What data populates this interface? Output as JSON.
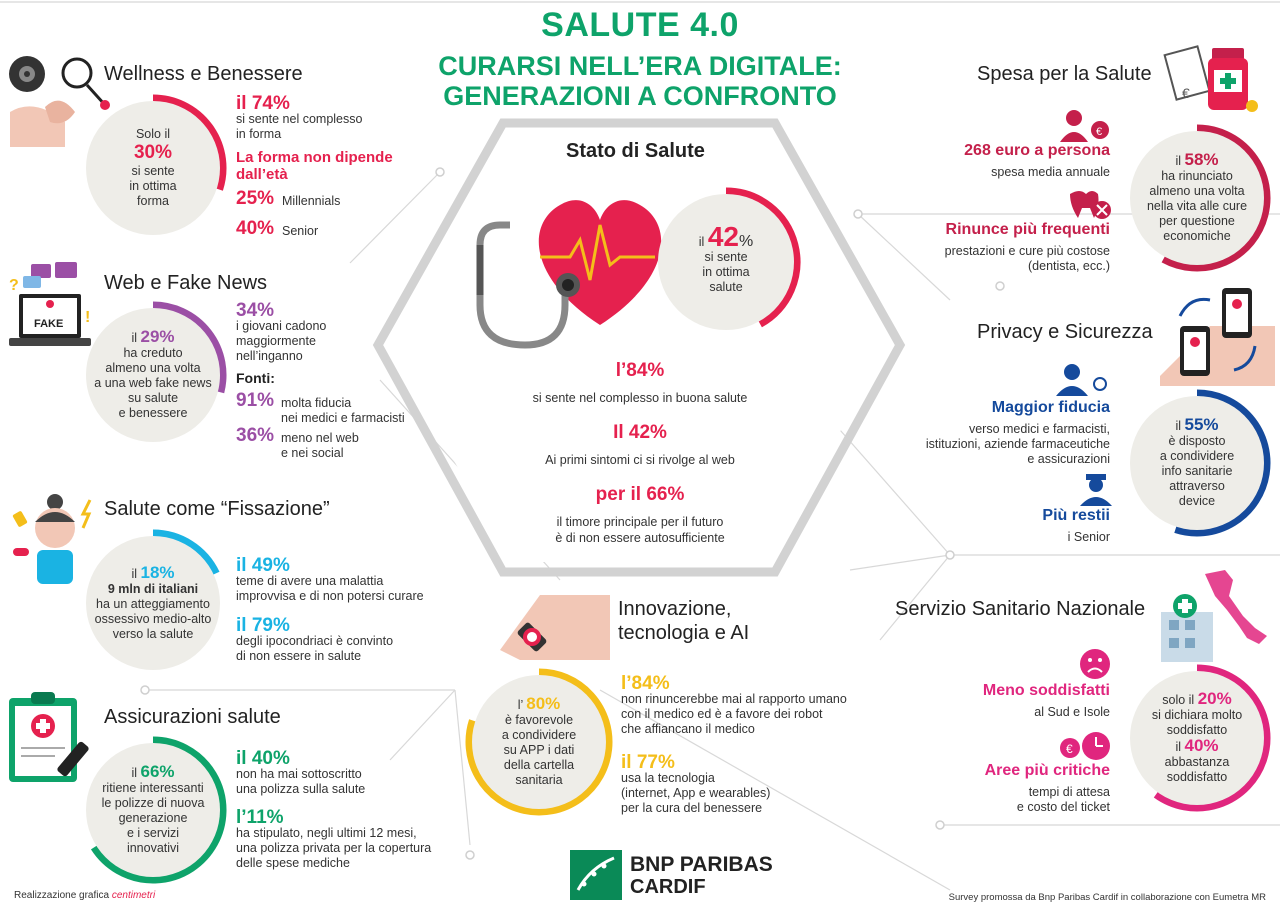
{
  "header": {
    "title": "SALUTE 4.0",
    "subtitle_line1": "CURARSI NELL’ERA DIGITALE:",
    "subtitle_line2": "GENERAZIONI A CONFRONTO"
  },
  "wellness": {
    "title": "Wellness e Benessere",
    "circle": {
      "l1": "Solo il",
      "pct": "30%",
      "l2": "si sente",
      "l3": "in ottima",
      "l4": "forma"
    },
    "s1_pct": "il 74%",
    "s1_text1": "si sente nel complesso",
    "s1_text2": "in forma",
    "s2_head1": "La forma non dipende",
    "s2_head2": "dall’età",
    "s3_pct": "25%",
    "s3_text": "Millennials",
    "s4_pct": "40%",
    "s4_text": "Senior",
    "progress": 0.3
  },
  "web": {
    "title": "Web e Fake News",
    "fake_label": "FAKE",
    "circle": {
      "pct_pre": "il",
      "pct": "29%",
      "l1": "ha creduto",
      "l2": "almeno una volta",
      "l3": "a una web fake news",
      "l4": "su salute",
      "l5": "e benessere"
    },
    "s1_pct": "34%",
    "s1_t1": "i giovani cadono",
    "s1_t2": "maggiormente",
    "s1_t3": "nell’inganno",
    "fonti": "Fonti:",
    "s2_pct": "91%",
    "s2_t1": "molta fiducia",
    "s2_t2": "nei medici e farmacisti",
    "s3_pct": "36%",
    "s3_t1": "meno nel web",
    "s3_t2": "e nei social",
    "progress": 0.29
  },
  "fissazione": {
    "title": "Salute come “Fissazione”",
    "circle": {
      "pct_pre": "il",
      "pct": "18%",
      "l1": "9 mln di italiani",
      "l2": "ha un atteggiamento",
      "l3": "ossessivo medio-alto",
      "l4": "verso la salute"
    },
    "s1_pct": "il 49%",
    "s1_t1": "teme di avere una malattia",
    "s1_t2": "improvvisa e di non potersi curare",
    "s2_pct": "il 79%",
    "s2_t1": "degli ipocondriaci è convinto",
    "s2_t2": "di non essere in salute",
    "progress": 0.18
  },
  "assicurazioni": {
    "title": "Assicurazioni salute",
    "circle": {
      "pct_pre": "il",
      "pct": "66%",
      "l1": "ritiene interessanti",
      "l2": "le polizze di nuova",
      "l3": "generazione",
      "l4": "e i servizi",
      "l5": "innovativi"
    },
    "s1_pct": "il 40%",
    "s1_t1": "non ha mai sottoscritto",
    "s1_t2": "una polizza sulla salute",
    "s2_pct": "l’11%",
    "s2_t1": "ha stipulato, negli ultimi 12 mesi,",
    "s2_t2": "una polizza privata per la copertura",
    "s2_t3": "delle spese mediche",
    "progress": 0.66
  },
  "stato": {
    "title": "Stato di Salute",
    "circle": {
      "pct_pre": "il",
      "pct": "42",
      "pct_sign": "%",
      "l1": "si sente",
      "l2": "in ottima",
      "l3": "salute"
    },
    "s1_pct": "l’84%",
    "s1_text": "si sente nel complesso in buona salute",
    "s2_pct": "Il 42%",
    "s2_text": "Ai primi sintomi ci si rivolge al web",
    "s3_pct": "per il 66%",
    "s3_t1": "il timore principale per il futuro",
    "s3_t2": "è di non essere autosufficiente",
    "progress": 0.42
  },
  "innovazione": {
    "title1": "Innovazione,",
    "title2": "tecnologia e AI",
    "circle": {
      "pct_pre": "l’",
      "pct": "80%",
      "l1": "è favorevole",
      "l2": "a condividere",
      "l3": "su APP i dati",
      "l4": "della cartella",
      "l5": "sanitaria"
    },
    "s1_pct": "l’84%",
    "s1_t1": "non rinuncerebbe mai al rapporto umano",
    "s1_t2": "con il medico ed è a favore dei robot",
    "s1_t3": "che affiancano il medico",
    "s2_pct": "il 77%",
    "s2_t1": "usa la tecnologia",
    "s2_t2": "(internet, App e wearables)",
    "s2_t3": "per la cura del benessere",
    "progress": 0.8
  },
  "spesa": {
    "title": "Spesa per la Salute",
    "s1_head": "268 euro a persona",
    "s1_text": "spesa media annuale",
    "s2_head": "Rinunce più frequenti",
    "s2_t1": "prestazioni e cure più costose",
    "s2_t2": "(dentista, ecc.)",
    "circle": {
      "pct_pre": "il",
      "pct": "58%",
      "l1": "ha rinunciato",
      "l2": "almeno una volta",
      "l3": "nella vita alle cure",
      "l4": "per questione",
      "l5": "economiche"
    },
    "progress": 0.58
  },
  "privacy": {
    "title": "Privacy e Sicurezza",
    "s1_head": "Maggior fiducia",
    "s1_t1": "verso medici e farmacisti,",
    "s1_t2": "istituzioni, aziende farmaceutiche",
    "s1_t3": "e assicurazioni",
    "s2_head": "Più restii",
    "s2_text": "i Senior",
    "circle": {
      "pct_pre": "il",
      "pct": "55%",
      "l1": "è disposto",
      "l2": "a condividere",
      "l3": "info sanitarie",
      "l4": "attraverso",
      "l5": "device"
    },
    "progress": 0.55
  },
  "ssn": {
    "title": "Servizio Sanitario Nazionale",
    "s1_head": "Meno soddisfatti",
    "s1_text": "al Sud e Isole",
    "s2_head": "Aree più critiche",
    "s2_t1": "tempi di attesa",
    "s2_t2": "e costo del ticket",
    "circle": {
      "pre1": "solo il",
      "pct1": "20%",
      "l1": "si dichiara molto",
      "l2": "soddisfatto",
      "pre2": "il",
      "pct2": "40%",
      "l3": "abbastanza",
      "l4": "soddisfatto"
    },
    "progress": 0.6
  },
  "footer": {
    "credit_label": "Realizzazione grafica",
    "credit_brand": "centimetri",
    "brand1": "BNP PARIBAS",
    "brand2": "CARDIF",
    "survey": "Survey promossa da Bnp Paribas Cardif in collaborazione con Eumetra MR"
  },
  "colors": {
    "green": "#0ea36a",
    "red": "#e5214e",
    "purple": "#9b4fa5",
    "cyan": "#1ab3e3",
    "yellow": "#f4be1a",
    "crimson": "#c4204b",
    "navy": "#154a9c",
    "pink": "#e0267e",
    "circle_bg": "#eeede8"
  }
}
